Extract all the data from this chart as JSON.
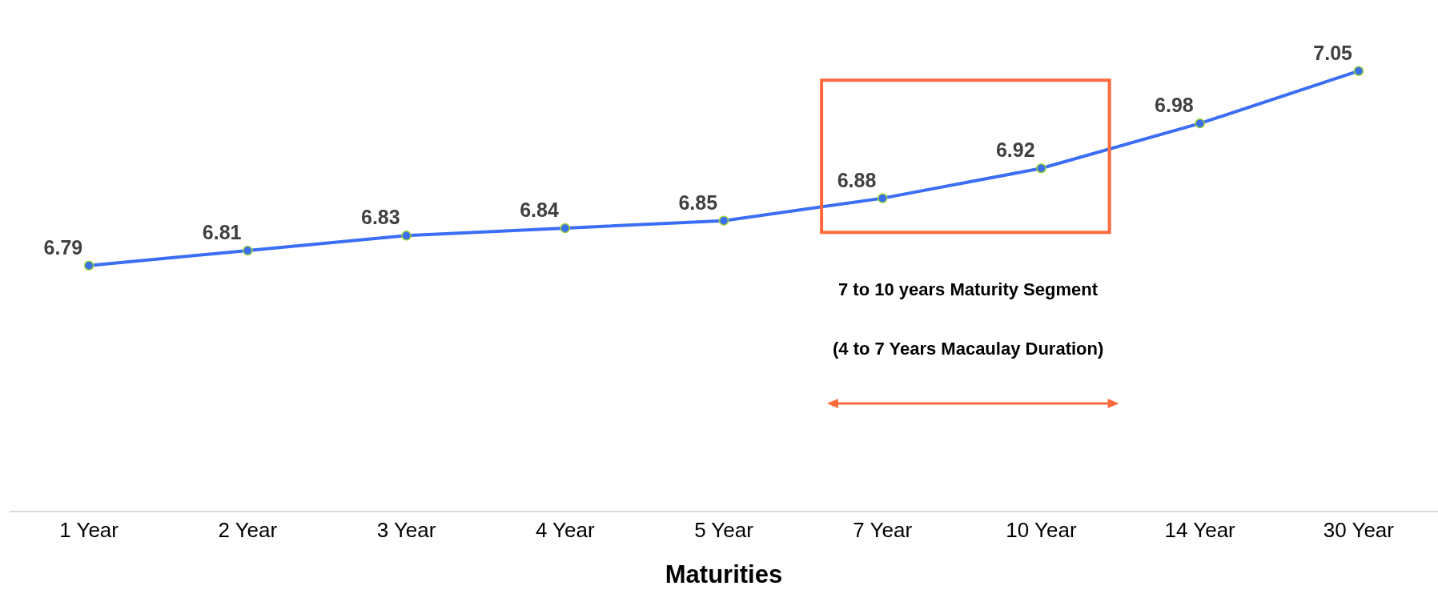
{
  "chart_data": {
    "type": "line",
    "categories": [
      "1 Year",
      "2 Year",
      "3 Year",
      "4 Year",
      "5 Year",
      "7 Year",
      "10 Year",
      "14 Year",
      "30 Year"
    ],
    "values": [
      6.79,
      6.81,
      6.83,
      6.84,
      6.85,
      6.88,
      6.92,
      6.98,
      7.05
    ],
    "color": "#3b6ef5",
    "marker": "circle",
    "data_labels": true,
    "xlabel": "Maturities",
    "annotations": [
      "7 to 10 years Maturity Segment",
      "(4 to 7 Years Macaulay Duration)"
    ]
  }
}
